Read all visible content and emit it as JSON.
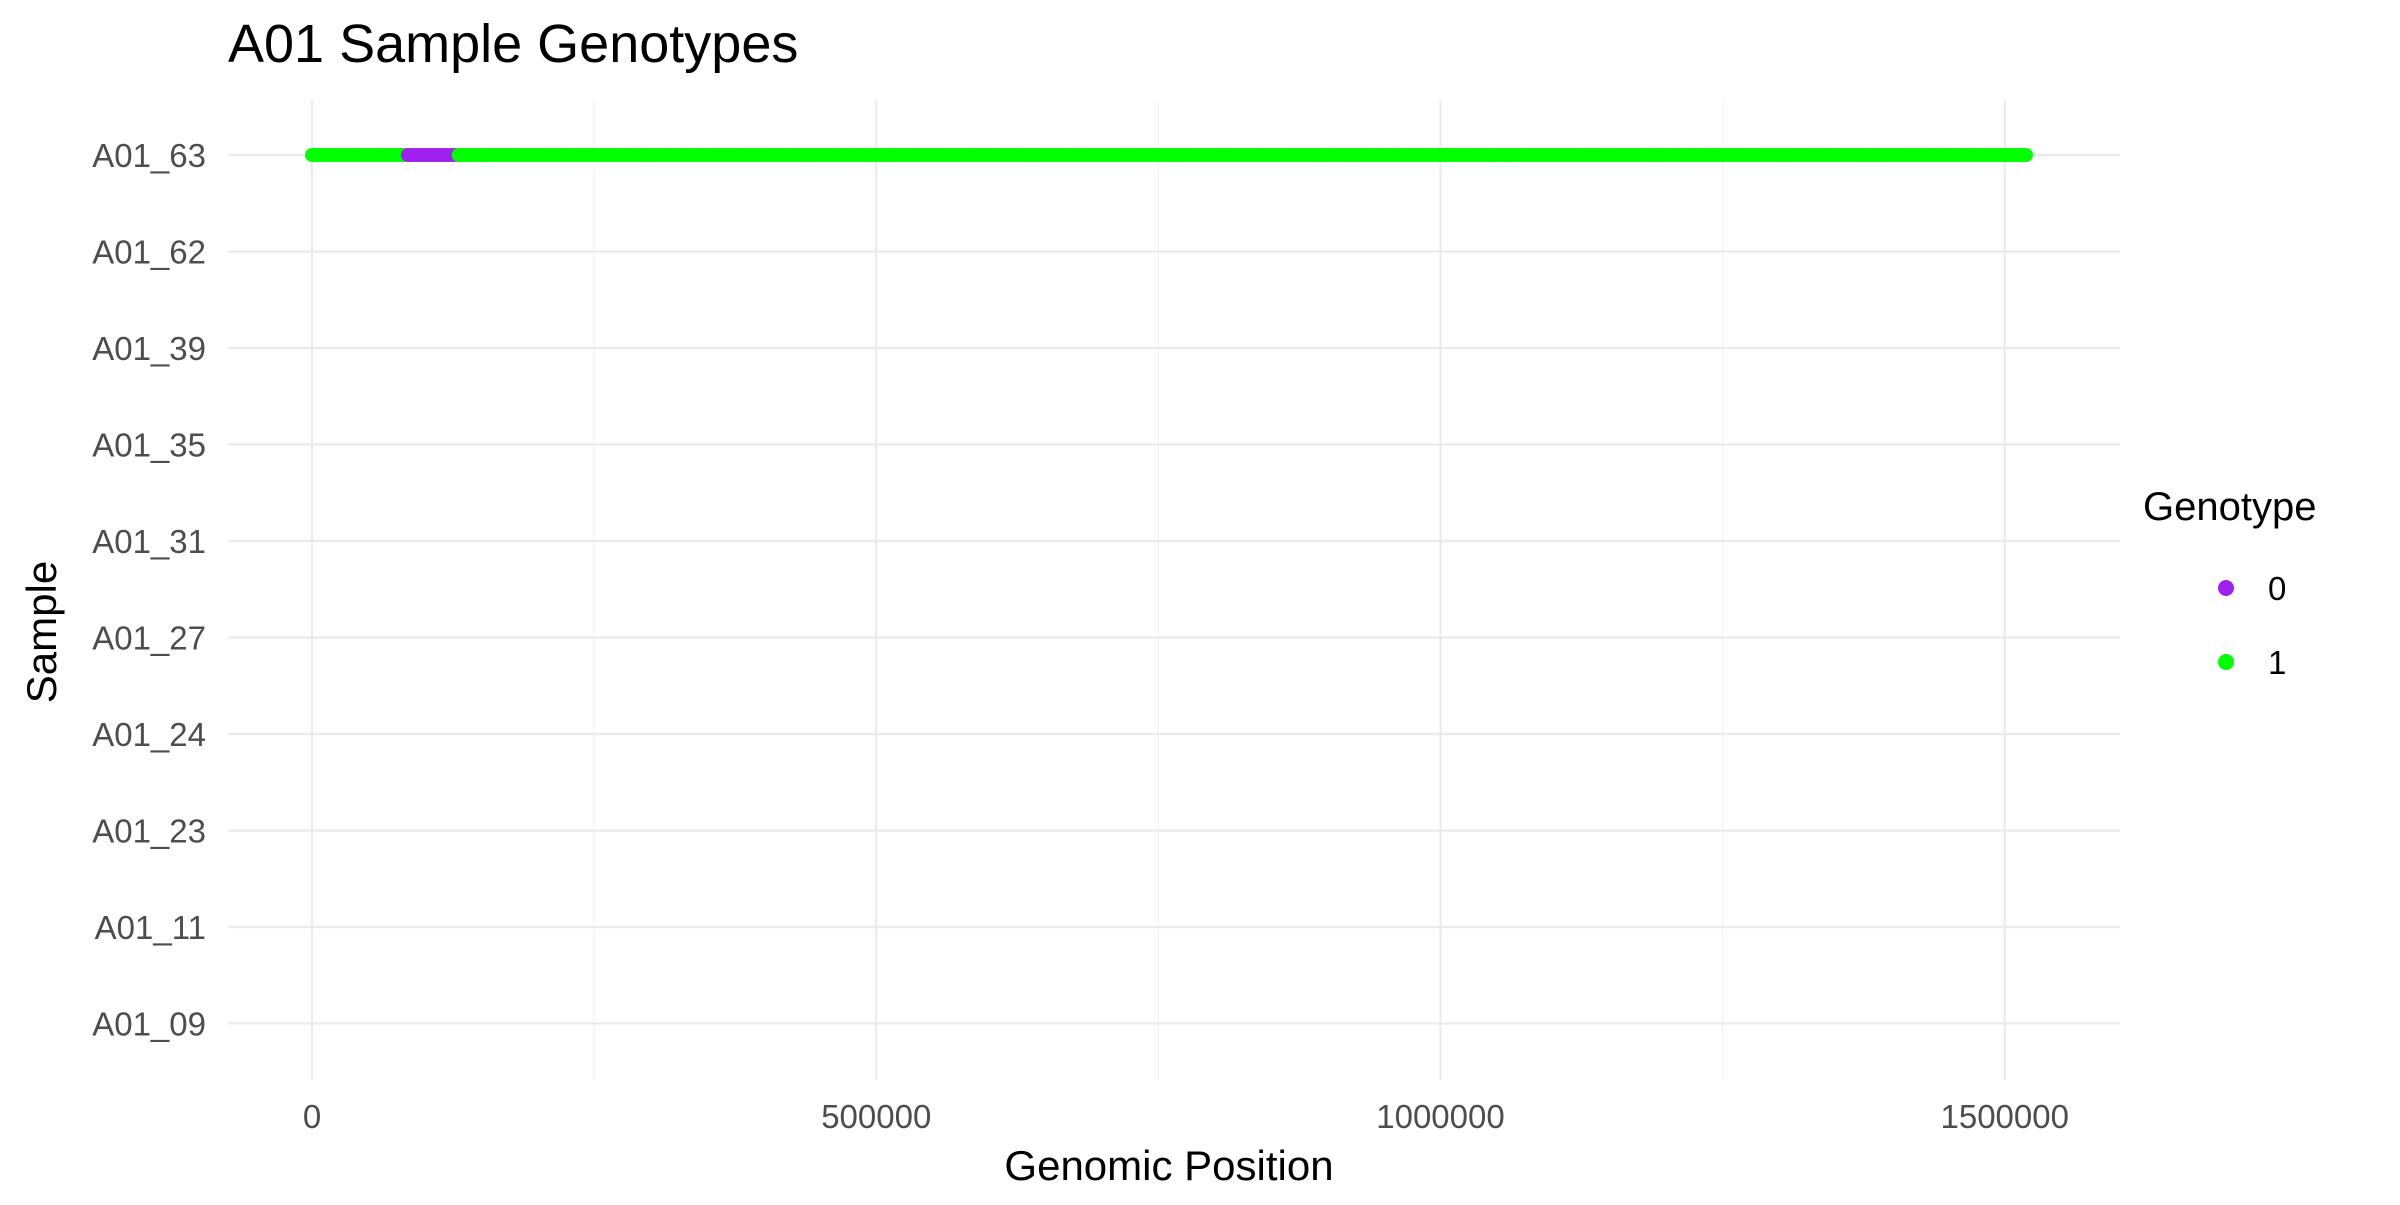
{
  "chart_data": {
    "type": "scatter",
    "title": "A01 Sample Genotypes",
    "xlabel": "Genomic Position",
    "ylabel": "Sample",
    "xlim": [
      -75000,
      1600000
    ],
    "x_ticks": [
      0,
      500000,
      1000000,
      1500000
    ],
    "x_tick_labels": [
      "0",
      "500000",
      "1000000",
      "1500000"
    ],
    "samples": [
      "A01_09",
      "A01_11",
      "A01_23",
      "A01_24",
      "A01_27",
      "A01_31",
      "A01_35",
      "A01_39",
      "A01_62",
      "A01_63"
    ],
    "grid": true,
    "legend": {
      "title": "Genotype",
      "position": "right",
      "entries": [
        {
          "label": "0",
          "color": "#A020F0"
        },
        {
          "label": "1",
          "color": "#00FF00"
        }
      ]
    },
    "colors": {
      "0": "#A020F0",
      "1": "#00FF00"
    },
    "x_range": [
      0,
      1520000
    ],
    "series": [
      {
        "sample": "A01_63",
        "segments": [
          {
            "start": 0,
            "end": 85000,
            "genotype": 1
          },
          {
            "start": 85000,
            "end": 130000,
            "genotype": 0
          },
          {
            "start": 130000,
            "end": 1520000,
            "genotype": 1
          }
        ]
      }
    ]
  }
}
